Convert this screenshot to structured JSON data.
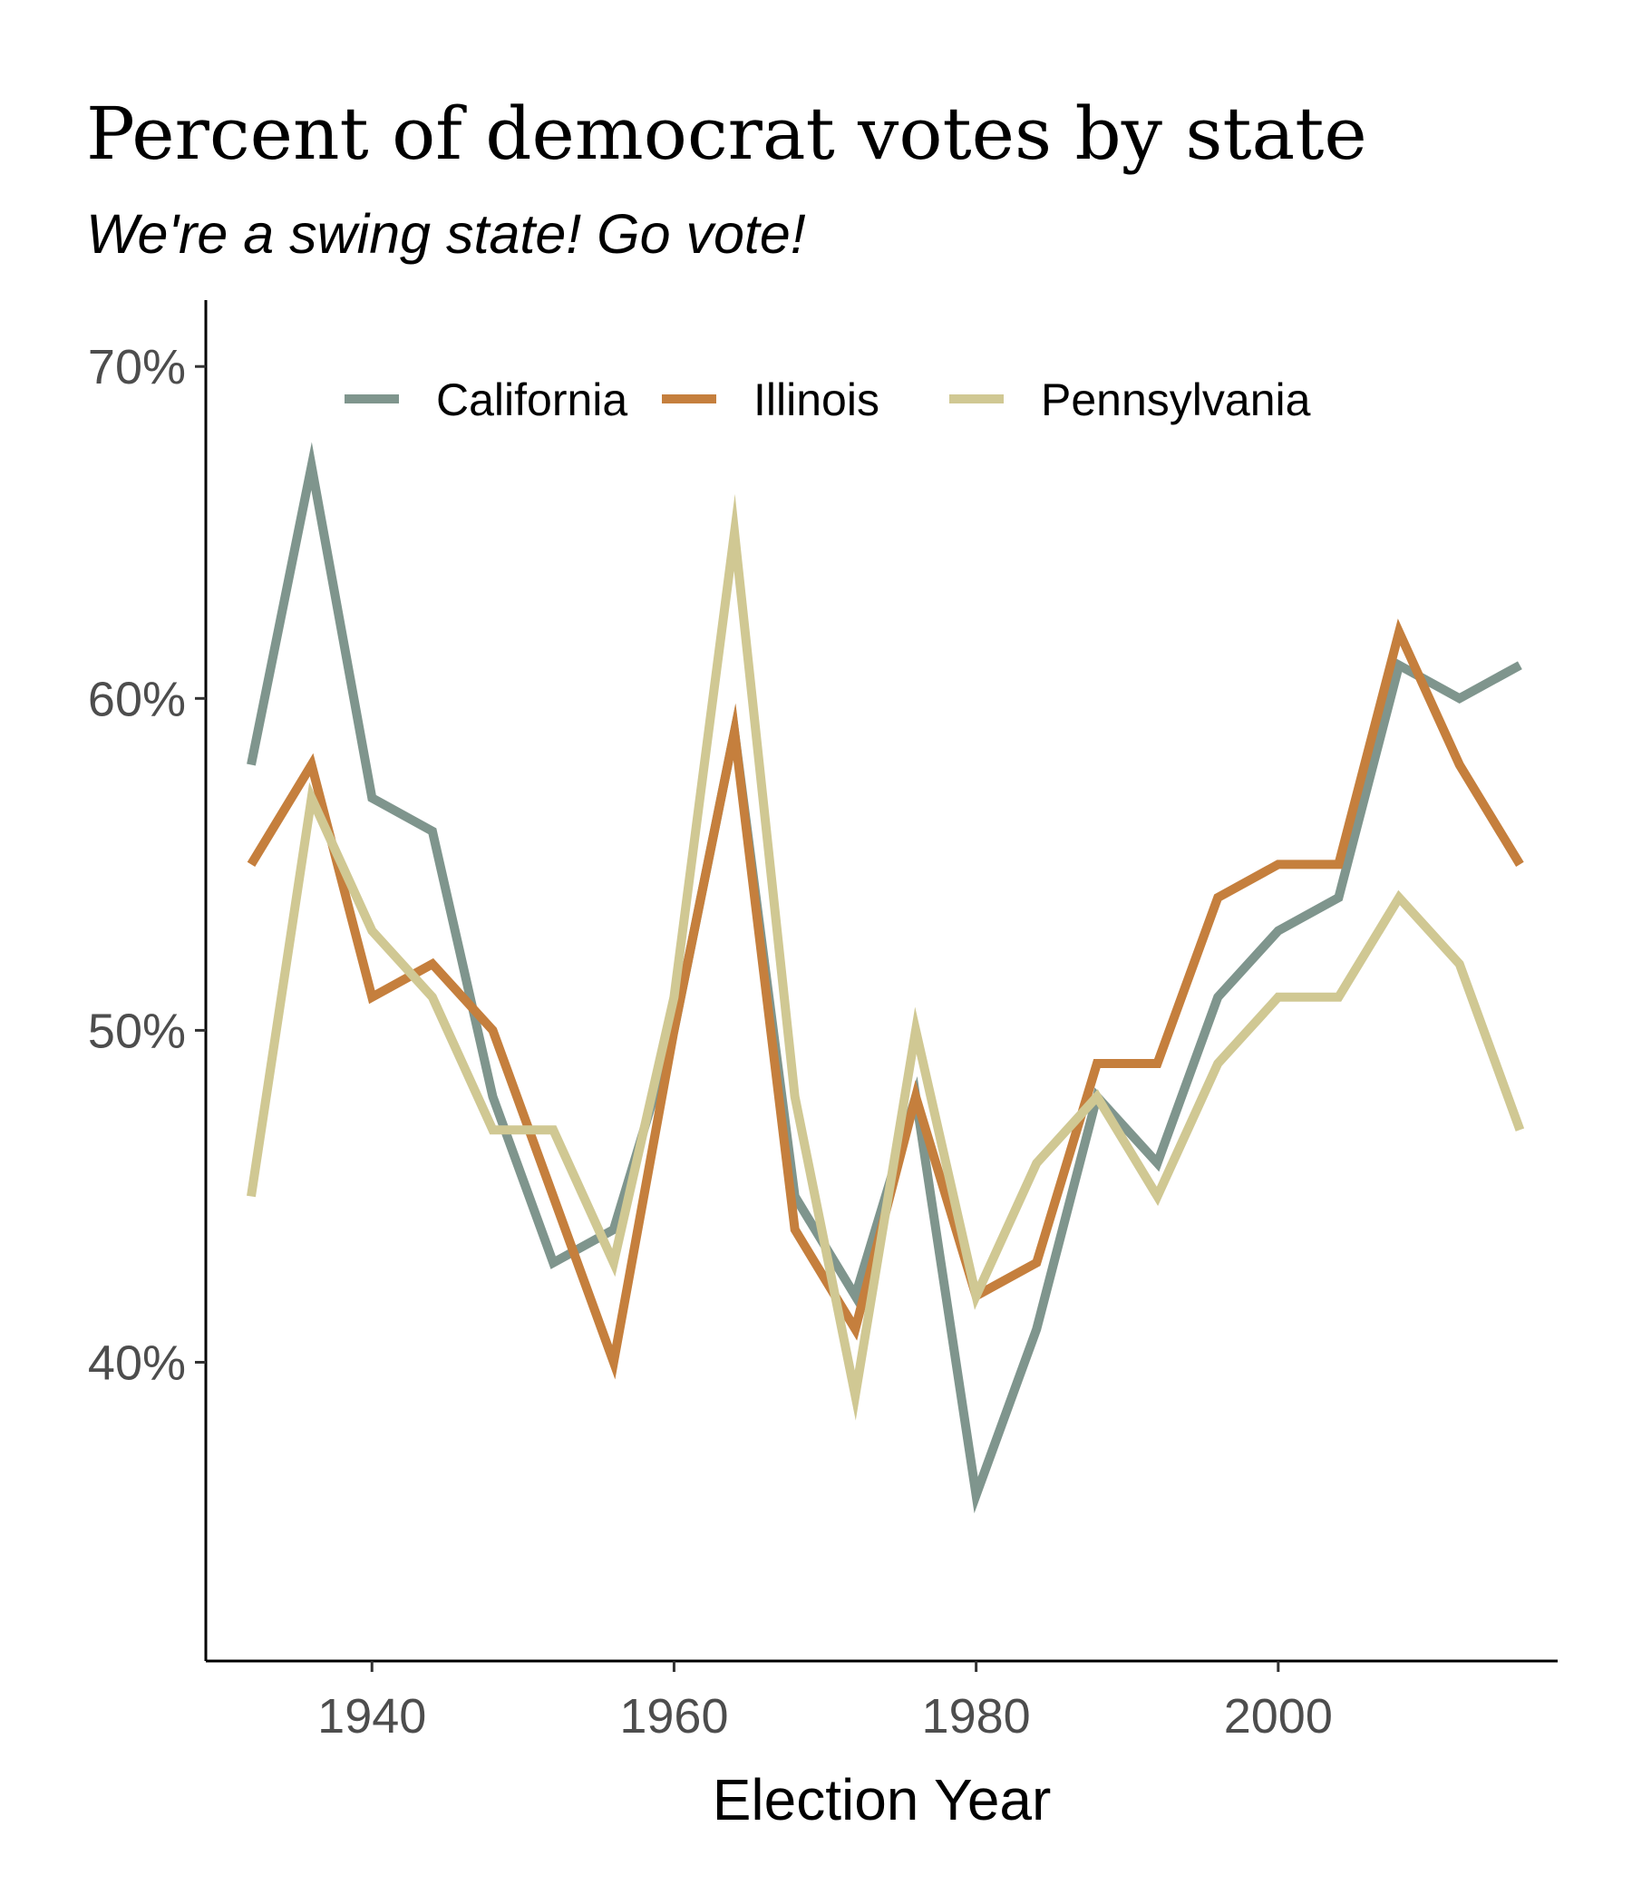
{
  "chart_data": {
    "type": "line",
    "title": "Percent of democrat votes by state",
    "subtitle": "We're a swing state! Go vote!",
    "xlabel": "Election Year",
    "ylabel": "",
    "x": [
      1932,
      1936,
      1940,
      1944,
      1948,
      1952,
      1956,
      1960,
      1964,
      1968,
      1972,
      1976,
      1980,
      1984,
      1988,
      1992,
      1996,
      2000,
      2004,
      2008,
      2012,
      2016
    ],
    "xlim": [
      1929,
      2018.5
    ],
    "ylim": [
      31,
      72
    ],
    "x_ticks": [
      1940,
      1960,
      1980,
      2000
    ],
    "y_ticks": [
      40,
      50,
      60,
      70
    ],
    "y_tick_labels": [
      "40%",
      "50%",
      "60%",
      "70%"
    ],
    "grid": false,
    "legend_position": "top-inside",
    "series": [
      {
        "name": "California",
        "color": "#7f958d",
        "values": [
          58,
          67,
          57,
          56,
          48,
          43,
          44,
          50,
          59,
          45,
          42,
          48,
          36,
          41,
          48,
          46,
          51,
          53,
          54,
          61,
          60,
          61
        ]
      },
      {
        "name": "Illinois",
        "color": "#c57f3d",
        "values": [
          55,
          58,
          51,
          52,
          50,
          45,
          40,
          50,
          59,
          44,
          41,
          48,
          42,
          43,
          49,
          49,
          54,
          55,
          55,
          62,
          58,
          55
        ]
      },
      {
        "name": "Pennsylvania",
        "color": "#d0c893",
        "values": [
          45,
          57,
          53,
          51,
          47,
          47,
          43,
          51,
          65,
          48,
          39,
          50,
          42,
          46,
          48,
          45,
          49,
          51,
          51,
          54,
          52,
          47
        ]
      }
    ]
  }
}
